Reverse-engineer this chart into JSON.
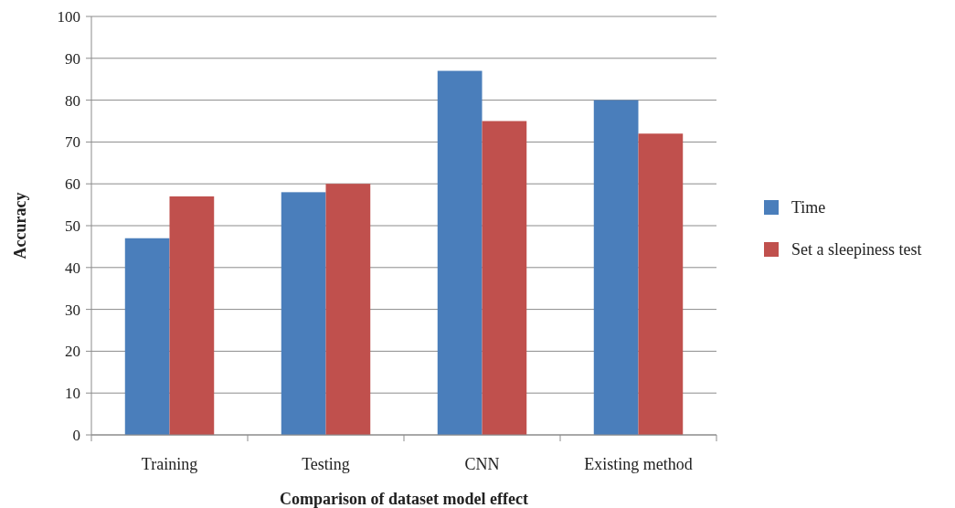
{
  "chart_data": {
    "type": "bar",
    "xlabel": "Comparison of dataset model effect",
    "ylabel": "Accuracy",
    "categories": [
      "Training",
      "Testing",
      "CNN",
      "Existing method"
    ],
    "series": [
      {
        "name": "Time",
        "color": "#4a7ebb",
        "values": [
          47,
          58,
          87,
          80
        ]
      },
      {
        "name": "Set a sleepiness test",
        "color": "#c0504d",
        "values": [
          57,
          60,
          75,
          72
        ]
      }
    ],
    "ylim": [
      0,
      100
    ],
    "yticks": [
      0,
      10,
      20,
      30,
      40,
      50,
      60,
      70,
      80,
      90,
      100
    ],
    "grid": "y",
    "legend": "right"
  }
}
